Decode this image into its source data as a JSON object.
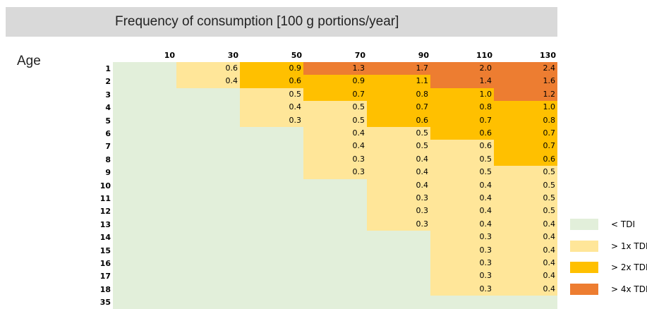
{
  "title": "Frequency of consumption [100 g portions/year]",
  "row_header": "Age",
  "columns": [
    "10",
    "30",
    "50",
    "70",
    "90",
    "110",
    "130"
  ],
  "rows": [
    {
      "label": "1",
      "values": [
        null,
        "0.6",
        "0.9",
        "1.3",
        "1.7",
        "2.0",
        "2.4"
      ],
      "levels": [
        0,
        1,
        2,
        3,
        3,
        3,
        3
      ]
    },
    {
      "label": "2",
      "values": [
        null,
        "0.4",
        "0.6",
        "0.9",
        "1.1",
        "1.4",
        "1.6"
      ],
      "levels": [
        0,
        1,
        2,
        2,
        2,
        3,
        3
      ]
    },
    {
      "label": "3",
      "values": [
        null,
        null,
        "0.5",
        "0.7",
        "0.8",
        "1.0",
        "1.2"
      ],
      "levels": [
        0,
        0,
        1,
        2,
        2,
        2,
        3
      ]
    },
    {
      "label": "4",
      "values": [
        null,
        null,
        "0.4",
        "0.5",
        "0.7",
        "0.8",
        "1.0"
      ],
      "levels": [
        0,
        0,
        1,
        1,
        2,
        2,
        2
      ]
    },
    {
      "label": "5",
      "values": [
        null,
        null,
        "0.3",
        "0.5",
        "0.6",
        "0.7",
        "0.8"
      ],
      "levels": [
        0,
        0,
        1,
        1,
        2,
        2,
        2
      ]
    },
    {
      "label": "6",
      "values": [
        null,
        null,
        null,
        "0.4",
        "0.5",
        "0.6",
        "0.7"
      ],
      "levels": [
        0,
        0,
        0,
        1,
        1,
        2,
        2
      ]
    },
    {
      "label": "7",
      "values": [
        null,
        null,
        null,
        "0.4",
        "0.5",
        "0.6",
        "0.7"
      ],
      "levels": [
        0,
        0,
        0,
        1,
        1,
        1,
        2
      ]
    },
    {
      "label": "8",
      "values": [
        null,
        null,
        null,
        "0.3",
        "0.4",
        "0.5",
        "0.6"
      ],
      "levels": [
        0,
        0,
        0,
        1,
        1,
        1,
        2
      ]
    },
    {
      "label": "9",
      "values": [
        null,
        null,
        null,
        "0.3",
        "0.4",
        "0.5",
        "0.5"
      ],
      "levels": [
        0,
        0,
        0,
        1,
        1,
        1,
        1
      ]
    },
    {
      "label": "10",
      "values": [
        null,
        null,
        null,
        null,
        "0.4",
        "0.4",
        "0.5"
      ],
      "levels": [
        0,
        0,
        0,
        0,
        1,
        1,
        1
      ]
    },
    {
      "label": "11",
      "values": [
        null,
        null,
        null,
        null,
        "0.3",
        "0.4",
        "0.5"
      ],
      "levels": [
        0,
        0,
        0,
        0,
        1,
        1,
        1
      ]
    },
    {
      "label": "12",
      "values": [
        null,
        null,
        null,
        null,
        "0.3",
        "0.4",
        "0.5"
      ],
      "levels": [
        0,
        0,
        0,
        0,
        1,
        1,
        1
      ]
    },
    {
      "label": "13",
      "values": [
        null,
        null,
        null,
        null,
        "0.3",
        "0.4",
        "0.4"
      ],
      "levels": [
        0,
        0,
        0,
        0,
        1,
        1,
        1
      ]
    },
    {
      "label": "14",
      "values": [
        null,
        null,
        null,
        null,
        null,
        "0.3",
        "0.4"
      ],
      "levels": [
        0,
        0,
        0,
        0,
        0,
        1,
        1
      ]
    },
    {
      "label": "15",
      "values": [
        null,
        null,
        null,
        null,
        null,
        "0.3",
        "0.4"
      ],
      "levels": [
        0,
        0,
        0,
        0,
        0,
        1,
        1
      ]
    },
    {
      "label": "16",
      "values": [
        null,
        null,
        null,
        null,
        null,
        "0.3",
        "0.4"
      ],
      "levels": [
        0,
        0,
        0,
        0,
        0,
        1,
        1
      ]
    },
    {
      "label": "17",
      "values": [
        null,
        null,
        null,
        null,
        null,
        "0.3",
        "0.4"
      ],
      "levels": [
        0,
        0,
        0,
        0,
        0,
        1,
        1
      ]
    },
    {
      "label": "18",
      "values": [
        null,
        null,
        null,
        null,
        null,
        "0.3",
        "0.4"
      ],
      "levels": [
        0,
        0,
        0,
        0,
        0,
        1,
        1
      ]
    },
    {
      "label": "35",
      "values": [
        null,
        null,
        null,
        null,
        null,
        null,
        null
      ],
      "levels": [
        0,
        0,
        0,
        0,
        0,
        0,
        0
      ]
    }
  ],
  "legend": [
    {
      "label": "< TDI",
      "color": "#e2efda"
    },
    {
      "label": "> 1x TDI",
      "color": "#ffe699"
    },
    {
      "label": "> 2x TDI",
      "color": "#ffc000"
    },
    {
      "label": "> 4x TDI",
      "color": "#ed7d31"
    }
  ]
}
